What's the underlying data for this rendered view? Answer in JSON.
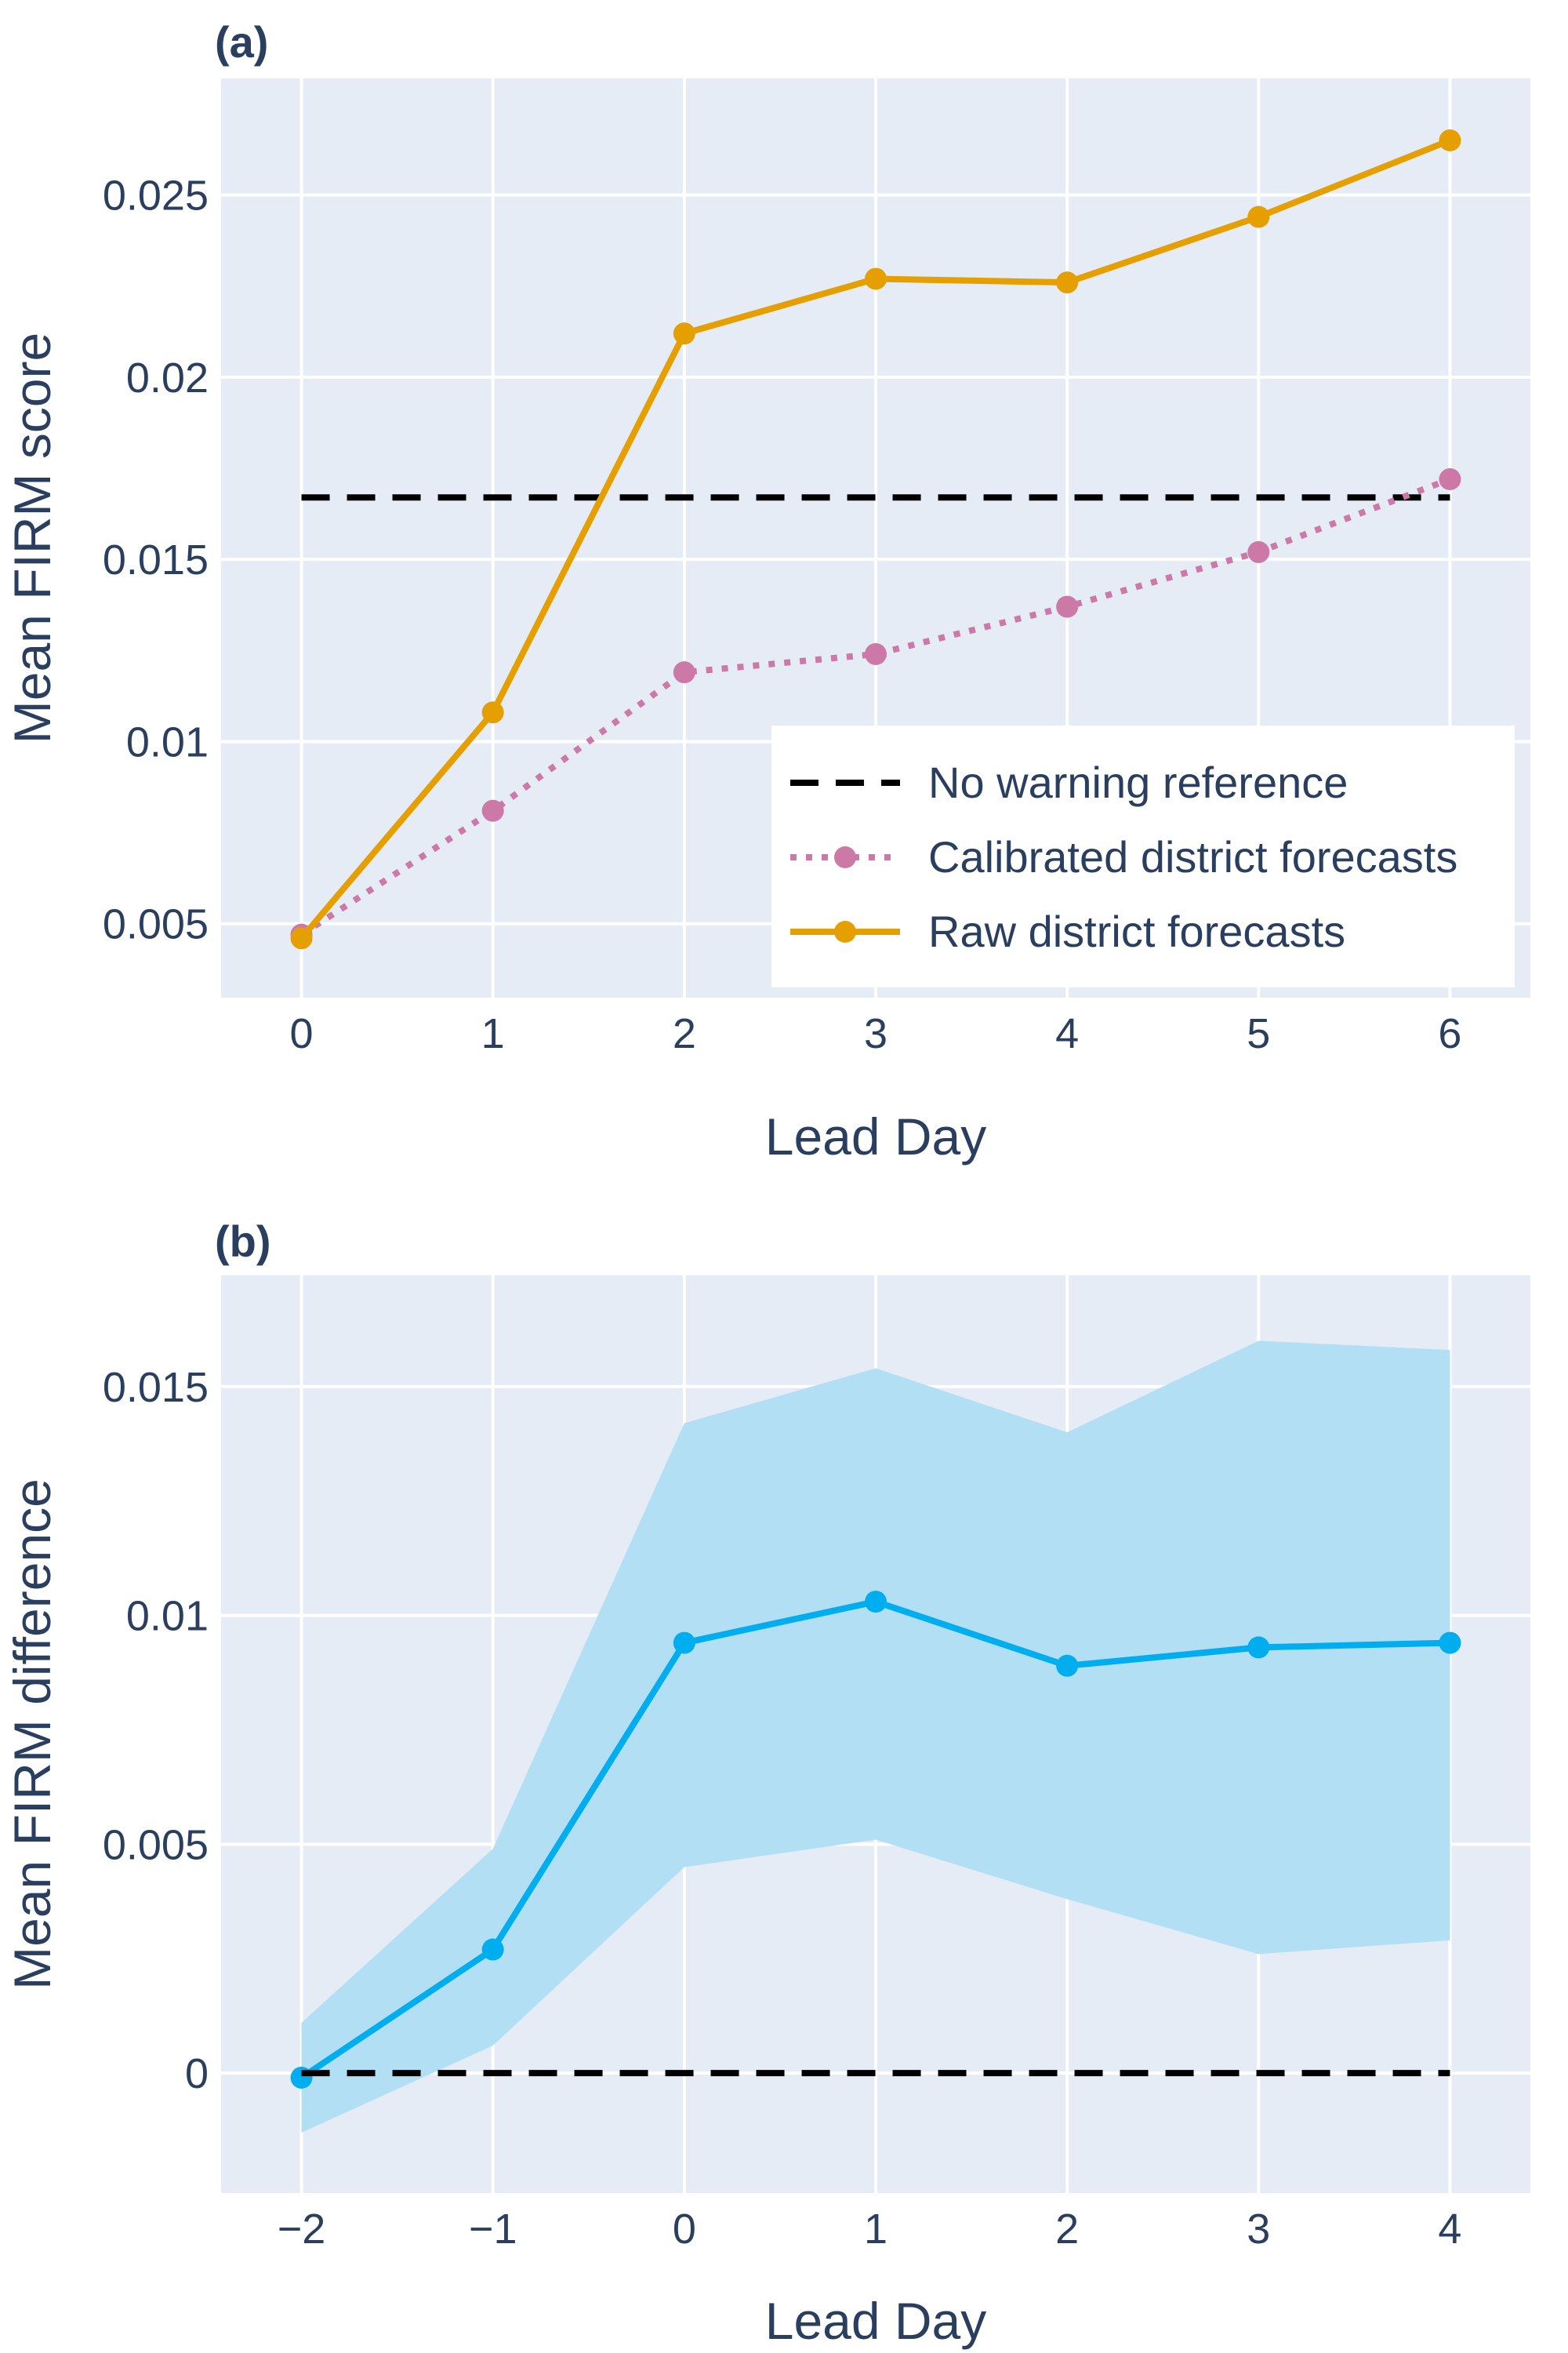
{
  "chart_data": [
    {
      "type": "line",
      "panel_label": "(a)",
      "xlabel": "Lead Day",
      "ylabel": "Mean FIRM score",
      "xlim": [
        -0.42,
        6.42
      ],
      "ylim": [
        0.00297,
        0.0282
      ],
      "xticks": [
        0,
        1,
        2,
        3,
        4,
        5,
        6
      ],
      "xtick_labels": [
        "0",
        "1",
        "2",
        "3",
        "4",
        "5",
        "6"
      ],
      "yticks": [
        0.005,
        0.01,
        0.015,
        0.02,
        0.025
      ],
      "ytick_labels": [
        "0.005",
        "0.01",
        "0.015",
        "0.02",
        "0.025"
      ],
      "grid": true,
      "legend_position": "bottom-right",
      "x": [
        0,
        1,
        2,
        3,
        4,
        5,
        6
      ],
      "series": [
        {
          "name": "No warning reference",
          "style": "dash",
          "color": "#000000",
          "values": [
            0.0167,
            0.0167,
            0.0167,
            0.0167,
            0.0167,
            0.0167,
            0.0167
          ]
        },
        {
          "name": "Calibrated district forecasts",
          "style": "dot",
          "markers": true,
          "color": "#cc79a7",
          "values": [
            0.0047,
            0.0081,
            0.0119,
            0.0124,
            0.0137,
            0.0152,
            0.0172
          ]
        },
        {
          "name": "Raw district forecasts",
          "style": "solid",
          "markers": true,
          "color": "#e69f00",
          "values": [
            0.0046,
            0.0108,
            0.0212,
            0.0227,
            0.0226,
            0.0244,
            0.0265
          ]
        }
      ]
    },
    {
      "type": "line",
      "panel_label": "(b)",
      "xlabel": "Lead Day",
      "ylabel": "Mean FIRM difference",
      "xlim": [
        -2.42,
        4.42
      ],
      "ylim": [
        -0.00262,
        0.01743
      ],
      "xticks": [
        -2,
        -1,
        0,
        1,
        2,
        3,
        4
      ],
      "xtick_labels": [
        "−2",
        "−1",
        "0",
        "1",
        "2",
        "3",
        "4"
      ],
      "yticks": [
        0,
        0.005,
        0.01,
        0.015
      ],
      "ytick_labels": [
        "0",
        "0.005",
        "0.01",
        "0.015"
      ],
      "grid": true,
      "x": [
        -2,
        -1,
        0,
        1,
        2,
        3,
        4
      ],
      "series": [
        {
          "style": "solid",
          "markers": true,
          "color": "#00aeef",
          "values": [
            -0.0001,
            0.0027,
            0.0094,
            0.0103,
            0.0089,
            0.0093,
            0.0094
          ]
        },
        {
          "style": "dash",
          "color": "#000000",
          "values": [
            0,
            0,
            0,
            0,
            0,
            0,
            0
          ]
        }
      ],
      "band": {
        "color": "#b3dff5",
        "lower": [
          -0.0013,
          0.0006,
          0.0045,
          0.0051,
          0.0038,
          0.0026,
          0.0029
        ],
        "upper": [
          0.0011,
          0.0049,
          0.0142,
          0.0154,
          0.014,
          0.016,
          0.0158
        ]
      }
    }
  ]
}
